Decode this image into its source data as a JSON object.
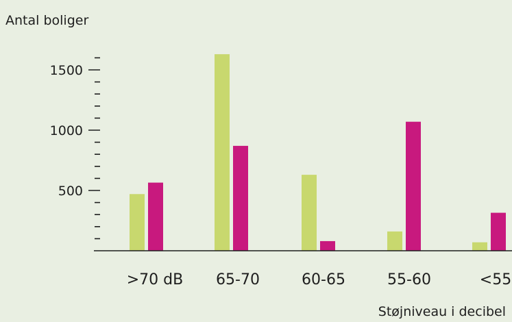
{
  "chart_data": {
    "type": "bar",
    "ylabel": "Antal boliger",
    "xlabel": "Støjniveau i decibel",
    "categories": [
      ">70 dB",
      "65-70",
      "60-65",
      "55-60",
      "<55"
    ],
    "series": [
      {
        "values": [
          470,
          1630,
          630,
          160,
          70
        ],
        "color": "#c8d86e"
      },
      {
        "values": [
          565,
          870,
          80,
          1070,
          315
        ],
        "color": "#c8197e"
      }
    ],
    "y_ticks": [
      500,
      1000,
      1500
    ],
    "ylim": [
      0,
      1500
    ],
    "grid": false
  }
}
